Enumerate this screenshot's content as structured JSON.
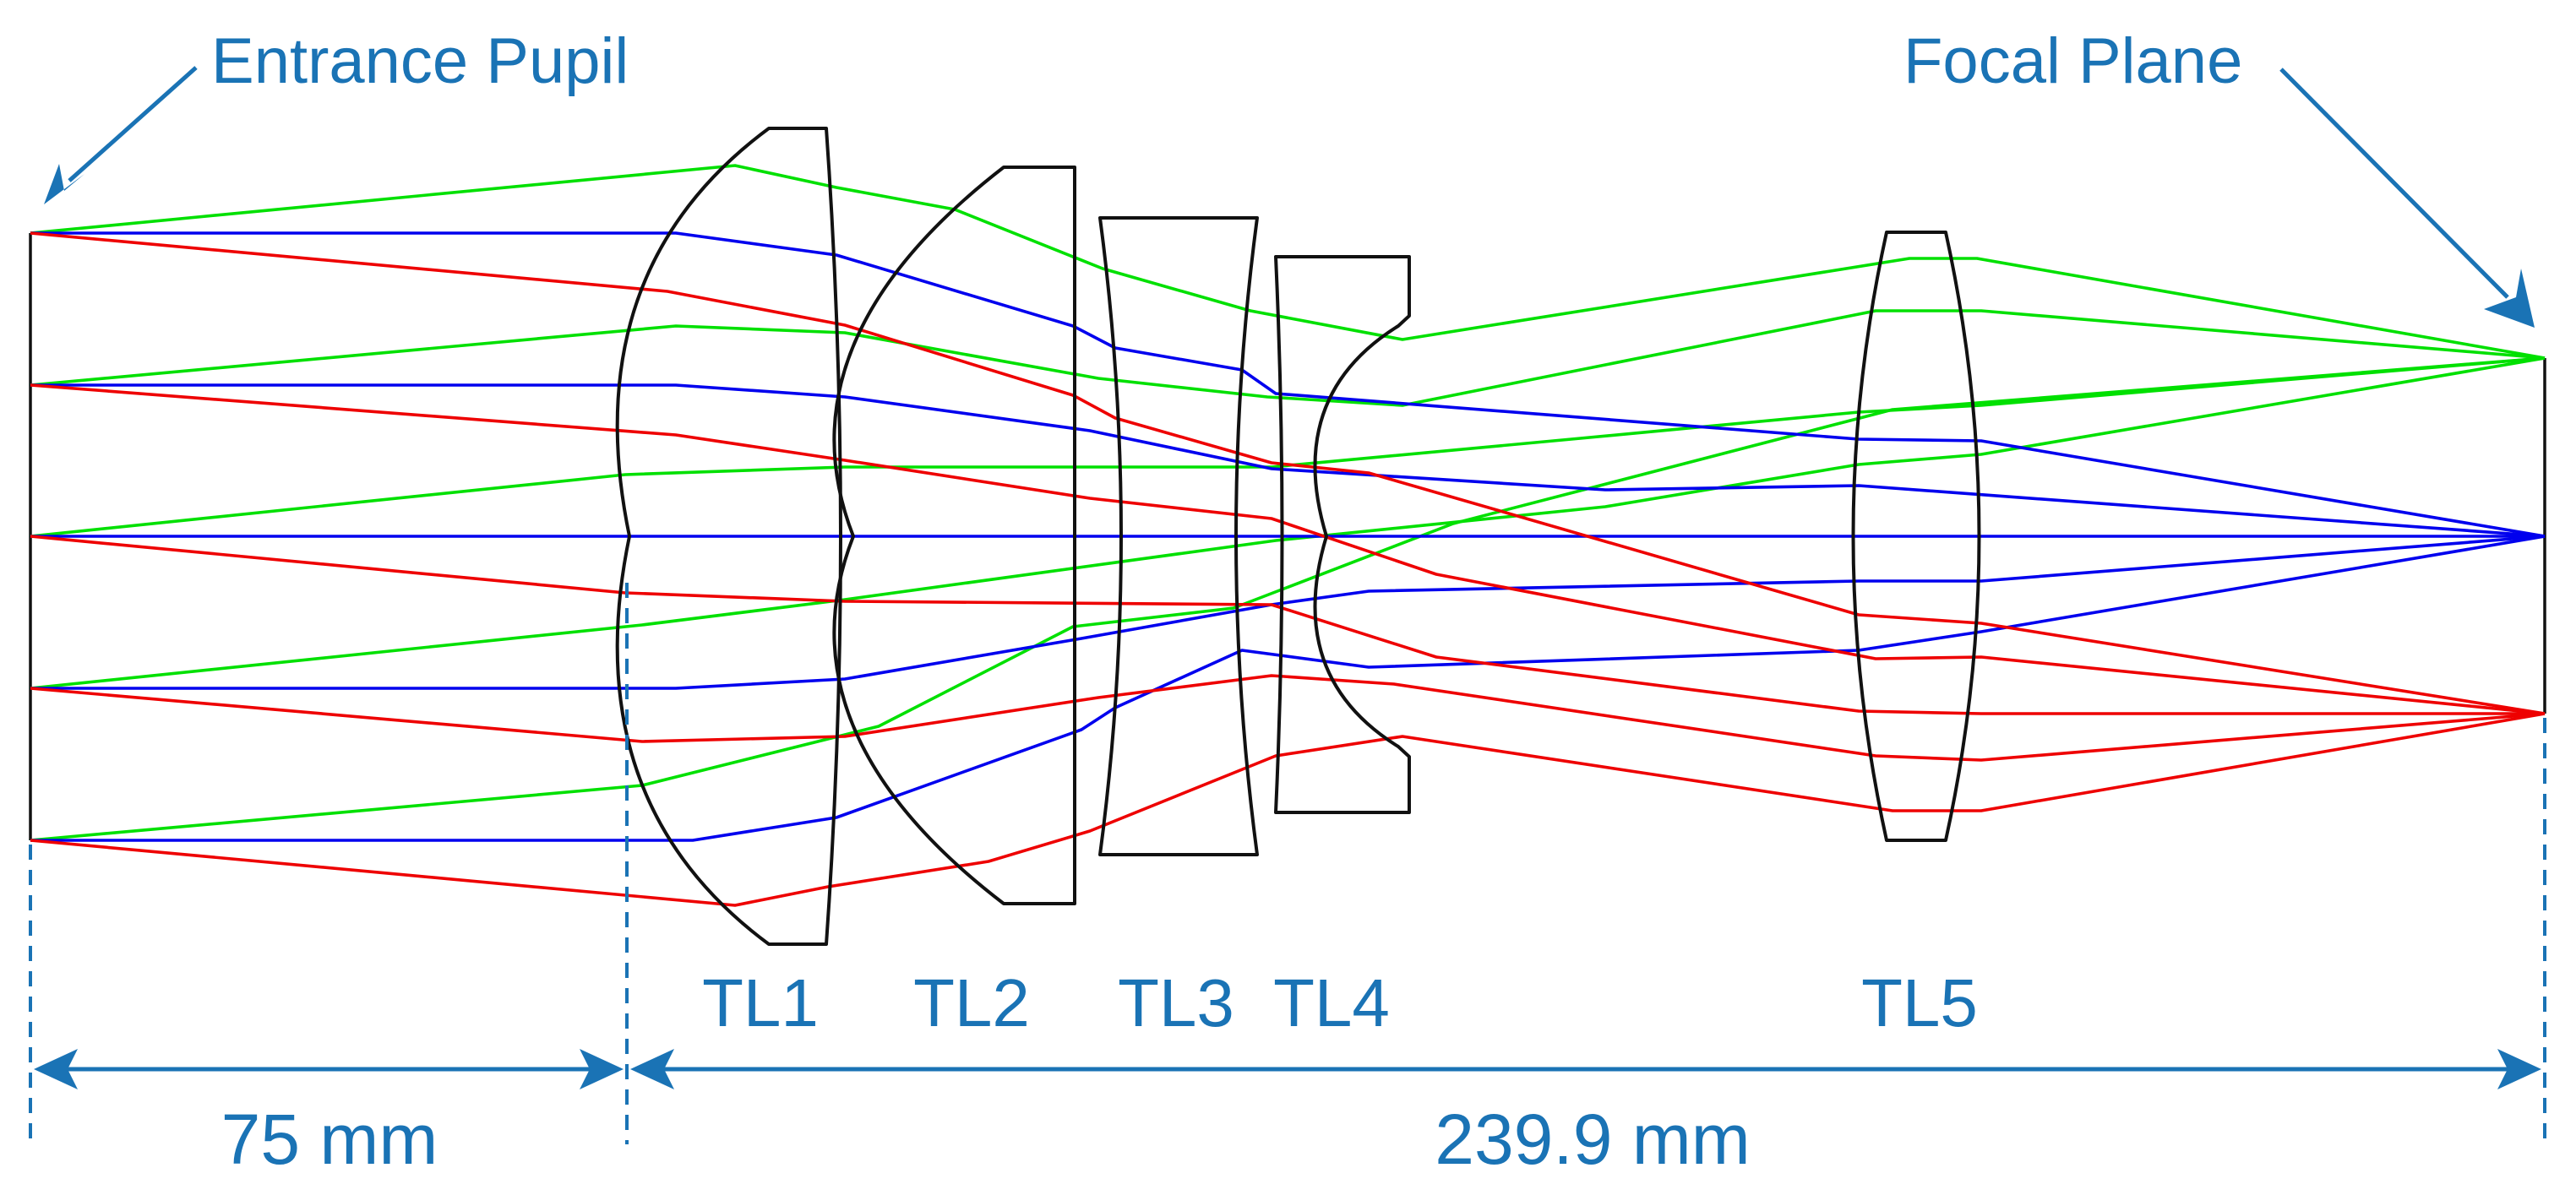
{
  "labels": {
    "entrance_pupil": "Entrance Pupil",
    "focal_plane": "Focal Plane"
  },
  "lenses": [
    {
      "id": "TL1",
      "label": "TL1"
    },
    {
      "id": "TL2",
      "label": "TL2"
    },
    {
      "id": "TL3",
      "label": "TL3"
    },
    {
      "id": "TL4",
      "label": "TL4"
    },
    {
      "id": "TL5",
      "label": "TL5"
    }
  ],
  "dimensions": {
    "left": "75 mm",
    "right": "239.9 mm"
  },
  "ray_colors": {
    "green": "#00e000",
    "blue": "#0000ee",
    "red": "#ee0000"
  },
  "annotation_color": "#1a73b5"
}
